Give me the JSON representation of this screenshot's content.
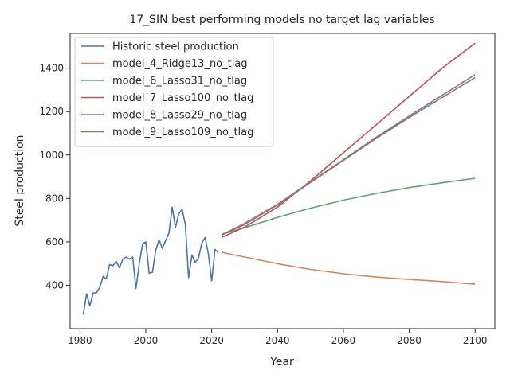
{
  "chart_data": {
    "type": "line",
    "title": "17_SIN best performing models no target lag variables",
    "xlabel": "Year",
    "ylabel": "Steel production",
    "xlim": [
      1977,
      2106
    ],
    "ylim": [
      200,
      1560
    ],
    "xticks": [
      1980,
      2000,
      2020,
      2040,
      2060,
      2080,
      2100
    ],
    "yticks": [
      400,
      600,
      800,
      1000,
      1200,
      1400
    ],
    "grid": false,
    "legend_position": "top-left",
    "series": [
      {
        "name": "Historic steel production",
        "color": "#4c72b0",
        "x": [
          1981,
          1982,
          1983,
          1984,
          1985,
          1986,
          1987,
          1988,
          1989,
          1990,
          1991,
          1992,
          1993,
          1994,
          1995,
          1996,
          1997,
          1998,
          1999,
          2000,
          2001,
          2002,
          2003,
          2004,
          2005,
          2006,
          2007,
          2008,
          2009,
          2010,
          2011,
          2012,
          2013,
          2014,
          2015,
          2016,
          2017,
          2018,
          2019,
          2020,
          2021,
          2022
        ],
        "y": [
          265,
          360,
          305,
          365,
          365,
          390,
          440,
          430,
          495,
          490,
          510,
          480,
          520,
          530,
          520,
          530,
          385,
          500,
          590,
          600,
          455,
          460,
          560,
          610,
          570,
          605,
          640,
          760,
          665,
          730,
          750,
          680,
          435,
          540,
          505,
          525,
          595,
          620,
          545,
          420,
          565,
          550
        ]
      },
      {
        "name": "model_4_Ridge13_no_tlag",
        "color": "#dd8452",
        "x": [
          2023,
          2030,
          2040,
          2050,
          2060,
          2070,
          2080,
          2090,
          2100
        ],
        "y": [
          552,
          530,
          499,
          473,
          453,
          438,
          427,
          417,
          405
        ]
      },
      {
        "name": "model_6_Lasso31_no_tlag",
        "color": "#55a868",
        "x": [
          2023,
          2030,
          2040,
          2050,
          2060,
          2070,
          2080,
          2090,
          2100
        ],
        "y": [
          635,
          665,
          713,
          755,
          792,
          823,
          850,
          872,
          893
        ]
      },
      {
        "name": "model_7_Lasso100_no_tlag",
        "color": "#c44e52",
        "x": [
          2023,
          2030,
          2040,
          2050,
          2060,
          2070,
          2080,
          2090,
          2100
        ],
        "y": [
          620,
          668,
          760,
          880,
          1010,
          1140,
          1270,
          1400,
          1515
        ]
      },
      {
        "name": "model_8_Lasso29_no_tlag",
        "color": "#8172b3",
        "x": [
          2023,
          2030,
          2040,
          2050,
          2060,
          2070,
          2080,
          2090,
          2100
        ],
        "y": [
          632,
          680,
          770,
          873,
          975,
          1077,
          1173,
          1265,
          1357
        ]
      },
      {
        "name": "model_9_Lasso109_no_tlag",
        "color": "#937860",
        "x": [
          2023,
          2030,
          2040,
          2050,
          2060,
          2070,
          2080,
          2090,
          2100
        ],
        "y": [
          632,
          685,
          773,
          876,
          978,
          1082,
          1180,
          1275,
          1370
        ]
      }
    ]
  }
}
